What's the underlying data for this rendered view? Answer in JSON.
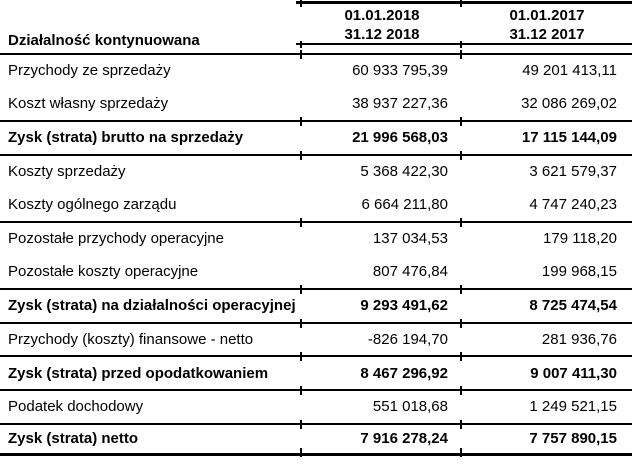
{
  "table": {
    "header": {
      "section_label": "Działalność kontynuowana",
      "period_2018": {
        "line1": "01.01.2018",
        "line2": "31.12 2018"
      },
      "period_2017": {
        "line1": "01.01.2017",
        "line2": "31.12 2017"
      }
    },
    "rows": [
      {
        "label": "Przychody ze sprzedaży",
        "v2018": "60 933 795,39",
        "v2017": "49 201 413,11",
        "bold": false
      },
      {
        "label": "Koszt własny sprzedaży",
        "v2018": "38 937 227,36",
        "v2017": "32 086 269,02",
        "bold": false
      },
      {
        "label": "Zysk (strata) brutto na sprzedaży",
        "v2018": "21 996 568,03",
        "v2017": "17 115 144,09",
        "bold": true
      },
      {
        "label": "Koszty sprzedaży",
        "v2018": "5 368 422,30",
        "v2017": "3 621 579,37",
        "bold": false
      },
      {
        "label": "Koszty ogólnego zarządu",
        "v2018": "6 664 211,80",
        "v2017": "4 747 240,23",
        "bold": false
      },
      {
        "label": "Pozostałe przychody operacyjne",
        "v2018": "137 034,53",
        "v2017": "179 118,20",
        "bold": false
      },
      {
        "label": "Pozostałe koszty operacyjne",
        "v2018": "807 476,84",
        "v2017": "199 968,15",
        "bold": false
      },
      {
        "label": "Zysk (strata) na działalności operacyjnej",
        "v2018": "9 293 491,62",
        "v2017": "8 725 474,54",
        "bold": true
      },
      {
        "label": "Przychody (koszty) finansowe - netto",
        "v2018": "-826 194,70",
        "v2017": "281 936,76",
        "bold": false
      },
      {
        "label": "Zysk (strata) przed opodatkowaniem",
        "v2018": "8 467 296,92",
        "v2017": "9 007 411,30",
        "bold": true
      },
      {
        "label": "Podatek dochodowy",
        "v2018": "551 018,68",
        "v2017": "1 249 521,15",
        "bold": false
      },
      {
        "label": "Zysk (strata) netto",
        "v2018": "7 916 278,24",
        "v2017": "7 757 890,15",
        "bold": true
      }
    ],
    "colors": {
      "text": "#000000",
      "background": "#ffffff",
      "border": "#000000"
    }
  }
}
